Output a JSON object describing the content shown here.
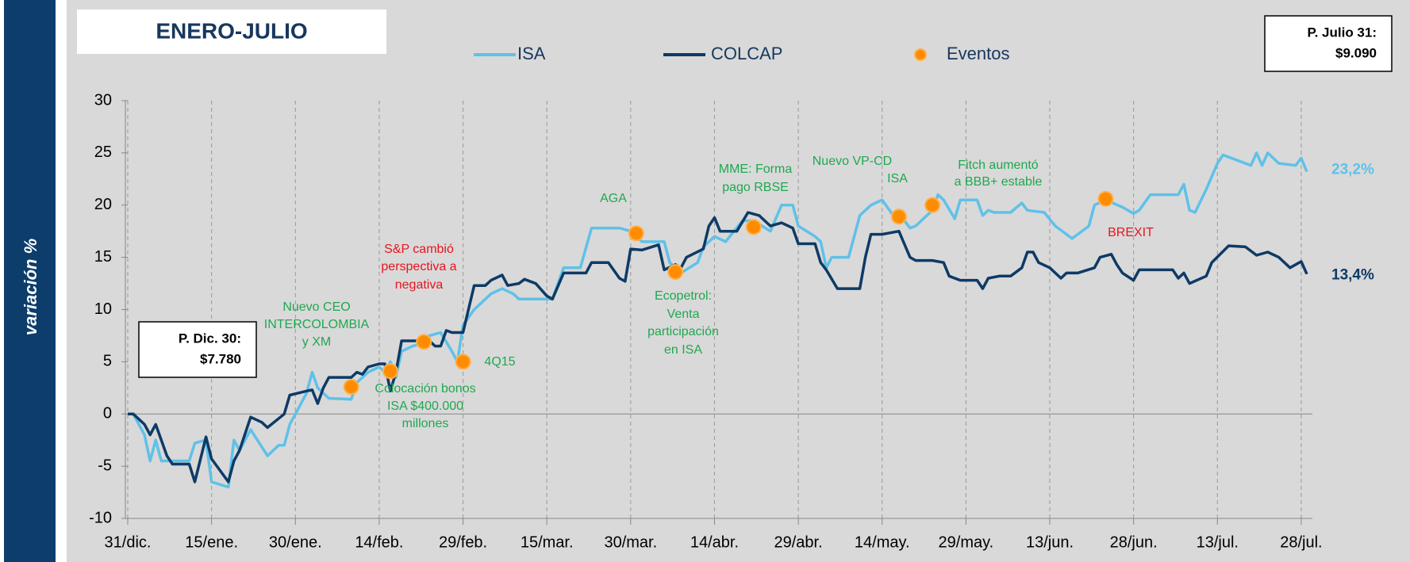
{
  "chart_data": {
    "type": "line",
    "title": "ENERO-JULIO",
    "ylabel": "variación %",
    "xlim": [
      0,
      212
    ],
    "xticks": [
      {
        "value": 0,
        "label": "31/dic."
      },
      {
        "value": 15,
        "label": "15/ene."
      },
      {
        "value": 30,
        "label": "30/ene."
      },
      {
        "value": 45,
        "label": "14/feb."
      },
      {
        "value": 60,
        "label": "29/feb."
      },
      {
        "value": 75,
        "label": "15/mar."
      },
      {
        "value": 90,
        "label": "30/mar."
      },
      {
        "value": 105,
        "label": "14/abr."
      },
      {
        "value": 120,
        "label": "29/abr."
      },
      {
        "value": 135,
        "label": "14/may."
      },
      {
        "value": 150,
        "label": "29/may."
      },
      {
        "value": 165,
        "label": "13/jun."
      },
      {
        "value": 180,
        "label": "28/jun."
      },
      {
        "value": 195,
        "label": "13/jul."
      },
      {
        "value": 210,
        "label": "28/jul."
      }
    ],
    "ylim": [
      -10,
      30
    ],
    "yticks": [
      -10,
      -5,
      0,
      5,
      10,
      15,
      20,
      25,
      30
    ],
    "grid": true,
    "series": [
      {
        "name": "ISA",
        "color": "#5fc1e8",
        "end_label": "23,2%",
        "x": [
          0,
          1,
          3,
          4,
          5,
          6,
          8,
          9,
          11,
          12,
          14,
          15,
          18,
          19,
          20,
          22,
          25,
          27,
          28,
          29,
          30,
          32,
          33,
          34,
          36,
          40,
          41,
          43,
          45,
          46,
          47,
          48,
          49,
          51,
          53,
          54,
          56,
          58,
          59,
          60,
          62,
          65,
          67,
          69,
          70,
          74,
          76,
          78,
          81,
          83,
          88,
          90,
          92,
          96,
          97,
          99,
          102,
          103,
          105,
          107,
          110,
          112,
          115,
          117,
          119,
          120,
          123,
          124,
          125,
          126,
          129,
          131,
          133,
          135,
          137,
          139,
          140,
          141,
          144,
          145,
          146,
          148,
          149,
          152,
          153,
          154,
          155,
          158,
          160,
          161,
          164,
          166,
          169,
          172,
          173,
          175,
          178,
          180,
          181,
          183,
          188,
          189,
          190,
          191,
          193,
          195,
          196,
          201,
          202,
          203,
          204,
          206,
          209,
          210,
          211
        ],
        "values": [
          0,
          0,
          -2,
          -4.5,
          -2.5,
          -4.5,
          -4.5,
          -4.5,
          -4.5,
          -2.8,
          -2.5,
          -6.5,
          -7,
          -2.5,
          -3.5,
          -1.5,
          -4,
          -3,
          -3,
          -1,
          0,
          2,
          4,
          2.5,
          1.5,
          1.4,
          3,
          4,
          4.5,
          4,
          5,
          3.5,
          6,
          6.5,
          6.8,
          7.5,
          7.8,
          6,
          5,
          8.5,
          10,
          11.5,
          12,
          11.5,
          11,
          11,
          11,
          14,
          14,
          17.8,
          17.8,
          17.5,
          16.5,
          16.5,
          14.5,
          13.5,
          14.5,
          16,
          17,
          16.5,
          18.5,
          18.5,
          17.5,
          20,
          20,
          18,
          17,
          16.5,
          14,
          15,
          15,
          19,
          20,
          20.5,
          19,
          18.5,
          17.8,
          18,
          19.5,
          21,
          20.5,
          18.7,
          20.5,
          20.5,
          19,
          19.5,
          19.3,
          19.3,
          20.2,
          19.5,
          19.3,
          18,
          16.8,
          18,
          20,
          20.5,
          19.8,
          19.2,
          19.5,
          21,
          21,
          22,
          19.5,
          19.3,
          21.5,
          24,
          24.8,
          23.8,
          25,
          23.8,
          25,
          24,
          23.8,
          24.5,
          23.2
        ]
      },
      {
        "name": "COLCAP",
        "color": "#0e3a66",
        "end_label": "13,4%",
        "x": [
          0,
          1,
          3,
          4,
          5,
          6,
          7,
          8,
          10,
          11,
          12,
          14,
          15,
          18,
          19,
          20,
          22,
          24,
          25,
          28,
          29,
          32,
          33,
          34,
          35,
          36,
          39,
          40,
          41,
          42,
          43,
          45,
          46,
          47,
          48,
          49,
          51,
          52,
          54,
          55,
          56,
          57,
          58,
          60,
          62,
          64,
          65,
          67,
          68,
          70,
          71,
          73,
          75,
          76,
          78,
          82,
          83,
          86,
          88,
          89,
          90,
          92,
          95,
          96,
          98,
          99,
          100,
          103,
          104,
          105,
          106,
          109,
          111,
          113,
          115,
          117,
          119,
          120,
          123,
          124,
          125,
          127,
          128,
          131,
          132,
          133,
          135,
          138,
          140,
          141,
          144,
          146,
          147,
          149,
          152,
          153,
          154,
          156,
          158,
          160,
          161,
          162,
          163,
          165,
          167,
          168,
          170,
          173,
          174,
          176,
          177,
          178,
          180,
          181,
          185,
          187,
          188,
          189,
          190,
          193,
          194,
          197,
          200,
          202,
          204,
          206,
          208,
          210,
          211
        ],
        "values": [
          0,
          0,
          -1,
          -2,
          -1,
          -2.5,
          -4,
          -4.8,
          -4.8,
          -4.8,
          -6.5,
          -2.2,
          -4.3,
          -6.5,
          -4.5,
          -3.5,
          -0.3,
          -0.8,
          -1.3,
          0,
          1.8,
          2.2,
          2.3,
          1,
          2.5,
          3.5,
          3.5,
          3.5,
          4,
          3.8,
          4.5,
          4.8,
          4.8,
          2.2,
          4,
          7,
          7,
          7,
          7,
          6.5,
          6.5,
          8,
          7.8,
          7.8,
          12.3,
          12.3,
          12.8,
          13.3,
          12.3,
          12.5,
          12.9,
          12.5,
          11.3,
          11,
          13.5,
          13.5,
          14.5,
          14.5,
          13,
          12.7,
          15.8,
          15.7,
          16.2,
          13.8,
          14.3,
          14,
          15,
          15.8,
          18,
          18.8,
          17.5,
          17.5,
          19.3,
          19,
          18,
          18.3,
          17.8,
          16.3,
          16.3,
          14.5,
          13.8,
          12,
          12,
          12,
          15,
          17.2,
          17.2,
          17.5,
          15,
          14.7,
          14.7,
          14.5,
          13.2,
          12.8,
          12.8,
          12,
          13,
          13.2,
          13.2,
          14,
          15.5,
          15.5,
          14.5,
          14,
          13,
          13.5,
          13.5,
          14,
          15,
          15.3,
          14.3,
          13.5,
          12.8,
          13.8,
          13.8,
          13.8,
          13,
          13.5,
          12.5,
          13.2,
          14.5,
          16.1,
          16,
          15.2,
          15.5,
          15,
          14,
          14.6,
          13.4
        ]
      }
    ],
    "events": {
      "name": "Eventos",
      "color": "#ff8c00",
      "x": [
        40,
        47,
        53,
        60,
        91,
        98,
        112,
        138,
        144,
        175
      ],
      "values": [
        2.6,
        4.1,
        6.9,
        5,
        17.3,
        13.6,
        17.9,
        18.9,
        20,
        20.6
      ]
    },
    "annotations": [
      {
        "lines": [
          "Nuevo CEO",
          "INTERCOLOMBIA",
          "y XM"
        ],
        "color": "#1fa84f"
      },
      {
        "lines": [
          "Colocación bonos",
          "ISA $400.000",
          "millones"
        ],
        "color": "#1fa84f"
      },
      {
        "lines": [
          "S&P cambió",
          "perspectiva a",
          "negativa"
        ],
        "color": "#e8141e"
      },
      {
        "lines": [
          "4Q15"
        ],
        "color": "#1fa84f"
      },
      {
        "lines": [
          "AGA"
        ],
        "color": "#1fa84f"
      },
      {
        "lines": [
          "Ecopetrol:",
          "Venta",
          "participación",
          "en ISA"
        ],
        "color": "#1fa84f"
      },
      {
        "lines": [
          "MME: Forma",
          "pago RBSE"
        ],
        "color": "#1fa84f"
      },
      {
        "lines": [
          "Nuevo VP-CD",
          "ISA"
        ],
        "color": "#1fa84f"
      },
      {
        "lines": [
          "Fitch aumentó",
          "a BBB+ estable"
        ],
        "color": "#1fa84f"
      },
      {
        "lines": [
          "BREXIT"
        ],
        "color": "#e8141e"
      }
    ],
    "boxes": [
      {
        "lines": [
          "P. Dic. 30:",
          "$7.780"
        ]
      },
      {
        "lines": [
          "P. Julio 31:",
          "$9.090"
        ]
      }
    ]
  }
}
